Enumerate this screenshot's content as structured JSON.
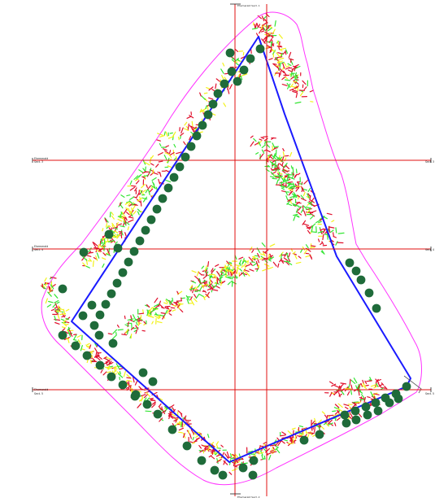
{
  "drawing": {
    "colors": {
      "background": "#ffffff",
      "boundary_outer": "#ff33ff",
      "boundary_inner": "#1a1aff",
      "grid_lines": "#e01010",
      "tree_fill": "#1f6b3a",
      "plant_red": "#e0102c",
      "plant_yellow": "#f2f21a",
      "plant_green": "#33e533"
    },
    "section_labels": [
      {
        "text": "Ehemerald",
        "sub": "Sect. 3"
      },
      {
        "text": "Ehemerald",
        "sub": "Sect. 4"
      },
      {
        "text": "Ehemerald",
        "sub": "Sect. 5"
      }
    ],
    "section_end_labels": [
      "Sect. 3",
      "Sect. 4",
      "Sect. 5"
    ],
    "vertical_labels": [
      "Ehemerald Sect. 1",
      "Ehemerald Sect. 2"
    ]
  }
}
